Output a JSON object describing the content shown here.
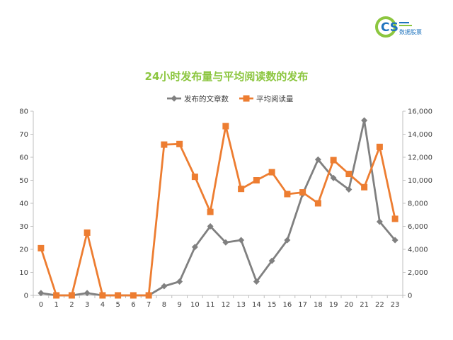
{
  "logo": {
    "letters": "CS",
    "caption": "数据股票"
  },
  "chart_data": {
    "type": "line",
    "title": "24小时发布量与平均阅读数的发布",
    "categories": [
      "0",
      "1",
      "2",
      "3",
      "4",
      "5",
      "6",
      "7",
      "8",
      "9",
      "10",
      "11",
      "12",
      "13",
      "14",
      "15",
      "16",
      "17",
      "18",
      "19",
      "20",
      "21",
      "22",
      "23"
    ],
    "series": [
      {
        "name": "发布的文章数",
        "axis": "left",
        "color": "#808080",
        "marker": "diamond",
        "values": [
          1,
          0,
          0,
          1,
          0,
          0,
          0,
          0,
          4,
          6,
          21,
          30,
          23,
          24,
          6,
          15,
          24,
          44,
          59,
          51,
          46,
          76,
          32,
          24
        ]
      },
      {
        "name": "平均阅读量",
        "axis": "right",
        "color": "#ed7d31",
        "marker": "square",
        "values": [
          4100,
          0,
          0,
          5450,
          0,
          0,
          0,
          0,
          13100,
          13150,
          10300,
          7250,
          14700,
          9250,
          10000,
          10700,
          8800,
          8950,
          8000,
          11750,
          10550,
          9400,
          12900,
          6650
        ]
      }
    ],
    "y_left": {
      "min": 0,
      "max": 80,
      "ticks": [
        "0",
        "10",
        "20",
        "30",
        "40",
        "50",
        "60",
        "70",
        "80"
      ]
    },
    "y_right": {
      "min": 0,
      "max": 16000,
      "ticks": [
        "0",
        "2,000",
        "4,000",
        "6,000",
        "8,000",
        "10,000",
        "12,000",
        "14,000",
        "16,000"
      ]
    },
    "legend_position": "top",
    "grid": false
  }
}
